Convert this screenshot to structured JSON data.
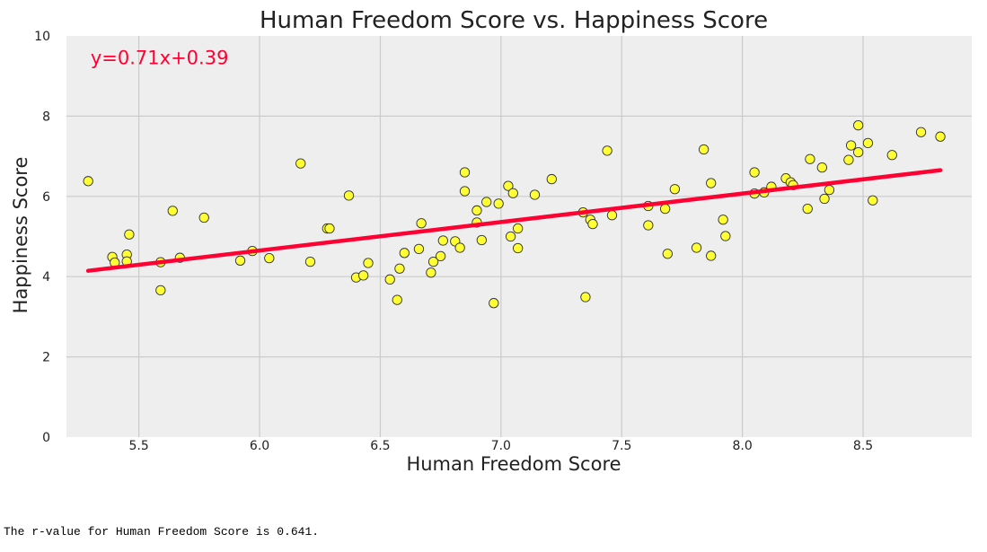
{
  "chart_data": {
    "type": "scatter",
    "title": "Human Freedom Score vs. Happiness Score",
    "xlabel": "Human Freedom Score",
    "ylabel": "Happiness Score",
    "xlim": [
      5.2,
      8.95
    ],
    "ylim": [
      0,
      10
    ],
    "xticks": [
      5.5,
      6.0,
      6.5,
      7.0,
      7.5,
      8.0,
      8.5
    ],
    "yticks": [
      0,
      2,
      4,
      6,
      8,
      10
    ],
    "grid": true,
    "background": "#eeeeee",
    "point_color": "#ffff33",
    "point_edge_color": "#333333",
    "line_color": "#ff0033",
    "regression": {
      "slope": 0.71,
      "intercept": 0.39,
      "x_start": 5.29,
      "x_end": 8.82
    },
    "annotation": {
      "text": "y=0.71x+0.39",
      "x": 5.3,
      "y": 9.3,
      "color": "#ff0033"
    },
    "points": [
      [
        5.29,
        6.38
      ],
      [
        5.39,
        4.49
      ],
      [
        5.4,
        4.35
      ],
      [
        5.45,
        4.55
      ],
      [
        5.45,
        4.38
      ],
      [
        5.46,
        5.05
      ],
      [
        5.59,
        4.36
      ],
      [
        5.59,
        3.66
      ],
      [
        5.64,
        5.64
      ],
      [
        5.67,
        4.47
      ],
      [
        5.77,
        5.47
      ],
      [
        5.92,
        4.4
      ],
      [
        5.97,
        4.64
      ],
      [
        6.04,
        4.46
      ],
      [
        6.17,
        6.82
      ],
      [
        6.21,
        4.37
      ],
      [
        6.28,
        5.2
      ],
      [
        6.29,
        5.2
      ],
      [
        6.37,
        6.02
      ],
      [
        6.4,
        3.98
      ],
      [
        6.43,
        4.03
      ],
      [
        6.45,
        4.34
      ],
      [
        6.54,
        3.93
      ],
      [
        6.57,
        3.42
      ],
      [
        6.58,
        4.2
      ],
      [
        6.6,
        4.59
      ],
      [
        6.66,
        4.69
      ],
      [
        6.67,
        5.33
      ],
      [
        6.71,
        4.1
      ],
      [
        6.72,
        4.37
      ],
      [
        6.75,
        4.51
      ],
      [
        6.76,
        4.9
      ],
      [
        6.81,
        4.88
      ],
      [
        6.83,
        4.72
      ],
      [
        6.85,
        6.6
      ],
      [
        6.85,
        6.13
      ],
      [
        6.9,
        5.65
      ],
      [
        6.9,
        5.35
      ],
      [
        6.92,
        4.91
      ],
      [
        6.94,
        5.86
      ],
      [
        6.97,
        3.34
      ],
      [
        6.99,
        5.82
      ],
      [
        7.03,
        6.26
      ],
      [
        7.04,
        5.0
      ],
      [
        7.05,
        6.08
      ],
      [
        7.07,
        5.2
      ],
      [
        7.07,
        4.71
      ],
      [
        7.14,
        6.04
      ],
      [
        7.21,
        6.43
      ],
      [
        7.34,
        5.6
      ],
      [
        7.35,
        3.49
      ],
      [
        7.37,
        5.42
      ],
      [
        7.38,
        5.31
      ],
      [
        7.44,
        7.14
      ],
      [
        7.46,
        5.53
      ],
      [
        7.61,
        5.76
      ],
      [
        7.61,
        5.28
      ],
      [
        7.68,
        5.69
      ],
      [
        7.69,
        4.57
      ],
      [
        7.72,
        6.18
      ],
      [
        7.81,
        4.72
      ],
      [
        7.84,
        7.17
      ],
      [
        7.87,
        6.33
      ],
      [
        7.87,
        4.52
      ],
      [
        7.92,
        5.42
      ],
      [
        7.93,
        5.01
      ],
      [
        8.05,
        6.6
      ],
      [
        8.05,
        6.07
      ],
      [
        8.09,
        6.1
      ],
      [
        8.12,
        6.24
      ],
      [
        8.18,
        6.45
      ],
      [
        8.2,
        6.35
      ],
      [
        8.21,
        6.28
      ],
      [
        8.27,
        5.69
      ],
      [
        8.28,
        6.93
      ],
      [
        8.33,
        6.72
      ],
      [
        8.34,
        5.94
      ],
      [
        8.36,
        6.16
      ],
      [
        8.44,
        6.91
      ],
      [
        8.45,
        7.27
      ],
      [
        8.48,
        7.77
      ],
      [
        8.48,
        7.1
      ],
      [
        8.52,
        7.33
      ],
      [
        8.54,
        5.9
      ],
      [
        8.62,
        7.03
      ],
      [
        8.74,
        7.6
      ],
      [
        8.82,
        7.49
      ]
    ]
  },
  "output_text": "The r-value for Human Freedom Score is 0.641."
}
